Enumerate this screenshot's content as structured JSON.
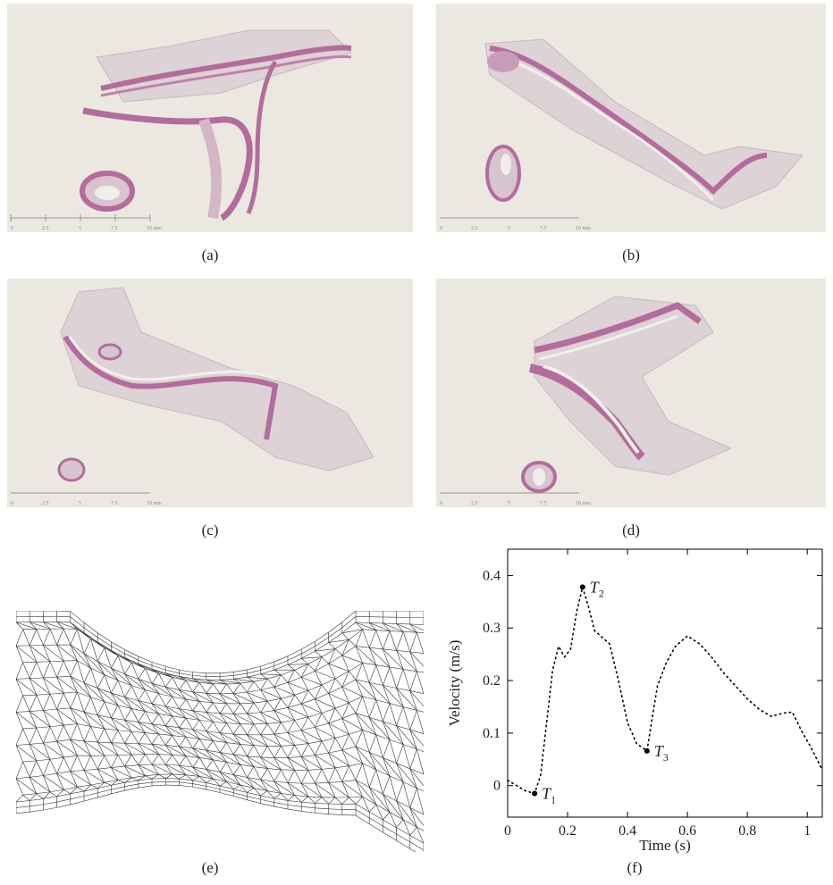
{
  "panels": {
    "a": {
      "caption": "(a)"
    },
    "b": {
      "caption": "(b)"
    },
    "c": {
      "caption": "(c)"
    },
    "d": {
      "caption": "(d)"
    },
    "e": {
      "caption": "(e)"
    },
    "f": {
      "caption": "(f)"
    }
  },
  "scale_bar": {
    "ticks": [
      "0",
      "2.5",
      "5",
      "7.5",
      "10 mm"
    ]
  },
  "colors": {
    "slide_background": "#ebe8e1",
    "tissue_pale": "#d9cbd1",
    "vessel_wall": "#b46c9c",
    "mesh_line": "#333333",
    "plot_line": "#000000"
  },
  "chart_data": {
    "type": "scatter",
    "xlabel": "Time (s)",
    "ylabel": "Velocity (m/s)",
    "xlim": [
      0,
      1.05
    ],
    "ylim": [
      -0.06,
      0.45
    ],
    "xticks": [
      "0",
      "0.2",
      "0.4",
      "0.6",
      "0.8",
      "1"
    ],
    "xtick_values": [
      0,
      0.2,
      0.4,
      0.6,
      0.8,
      1.0
    ],
    "yticks": [
      "0",
      "0.1",
      "0.2",
      "0.3",
      "0.4"
    ],
    "ytick_values": [
      0,
      0.1,
      0.2,
      0.3,
      0.4
    ],
    "line_style": "dotted",
    "series": [
      {
        "x": [
          0.0,
          0.03,
          0.06,
          0.09,
          0.11,
          0.13,
          0.15,
          0.17,
          0.19,
          0.21,
          0.23,
          0.25,
          0.27,
          0.29,
          0.31,
          0.34,
          0.37,
          0.4,
          0.43,
          0.465,
          0.48,
          0.5,
          0.53,
          0.56,
          0.6,
          0.64,
          0.68,
          0.72,
          0.76,
          0.8,
          0.84,
          0.88,
          0.92,
          0.95,
          0.98,
          1.01,
          1.05
        ],
        "y": [
          0.01,
          0.0,
          -0.01,
          -0.015,
          0.02,
          0.12,
          0.22,
          0.265,
          0.245,
          0.26,
          0.33,
          0.378,
          0.34,
          0.295,
          0.285,
          0.27,
          0.2,
          0.12,
          0.08,
          0.066,
          0.12,
          0.19,
          0.235,
          0.265,
          0.285,
          0.27,
          0.245,
          0.215,
          0.19,
          0.165,
          0.145,
          0.132,
          0.138,
          0.14,
          0.105,
          0.075,
          0.03
        ]
      }
    ],
    "annotations": [
      {
        "label": "T",
        "sub": "1",
        "x": 0.09,
        "y": -0.015
      },
      {
        "label": "T",
        "sub": "2",
        "x": 0.25,
        "y": 0.378
      },
      {
        "label": "T",
        "sub": "3",
        "x": 0.465,
        "y": 0.066
      }
    ]
  }
}
